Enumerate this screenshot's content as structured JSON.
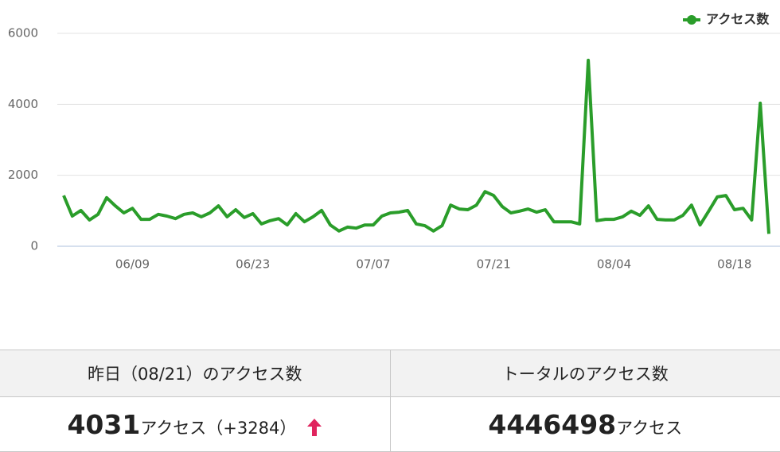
{
  "chart_data": {
    "type": "line",
    "categories": [
      null,
      null,
      null,
      null,
      null,
      null,
      null,
      null,
      "06/09",
      null,
      null,
      null,
      null,
      null,
      null,
      null,
      null,
      null,
      null,
      null,
      null,
      null,
      "06/23",
      null,
      null,
      null,
      null,
      null,
      null,
      null,
      null,
      null,
      null,
      null,
      null,
      null,
      "07/07",
      null,
      null,
      null,
      null,
      null,
      null,
      null,
      null,
      null,
      null,
      null,
      null,
      null,
      "07/21",
      null,
      null,
      null,
      null,
      null,
      null,
      null,
      null,
      null,
      null,
      null,
      null,
      null,
      "08/04",
      null,
      null,
      null,
      null,
      null,
      null,
      null,
      null,
      null,
      null,
      null,
      null,
      null,
      "08/18",
      null,
      null,
      null,
      null
    ],
    "series": [
      {
        "name": "アクセス数",
        "color": "#2a9d2a",
        "values": [
          1430,
          850,
          1010,
          740,
          900,
          1370,
          1140,
          940,
          1070,
          760,
          760,
          900,
          850,
          780,
          900,
          940,
          830,
          940,
          1140,
          830,
          1030,
          810,
          920,
          630,
          720,
          780,
          600,
          920,
          690,
          830,
          1010,
          600,
          430,
          540,
          510,
          600,
          600,
          850,
          940,
          960,
          1010,
          630,
          580,
          430,
          580,
          1160,
          1050,
          1030,
          1160,
          1540,
          1430,
          1120,
          940,
          990,
          1050,
          960,
          1030,
          690,
          690,
          690,
          630,
          5240,
          720,
          760,
          760,
          830,
          990,
          870,
          1140,
          760,
          740,
          740,
          870,
          1160,
          600,
          990,
          1390,
          1430,
          1030,
          1070,
          740,
          4031,
          350
        ]
      }
    ],
    "ylim": [
      0,
      6000
    ],
    "yticks": [
      0,
      2000,
      4000,
      6000
    ],
    "grid": true,
    "legend": "top-right"
  },
  "stats": {
    "headers": [
      "昨日（08/21）のアクセス数",
      "トータルのアクセス数"
    ],
    "yesterday": {
      "count": 4031,
      "unit": "アクセス（+3284）"
    },
    "total": {
      "count": 4446498,
      "unit": "アクセス"
    }
  }
}
